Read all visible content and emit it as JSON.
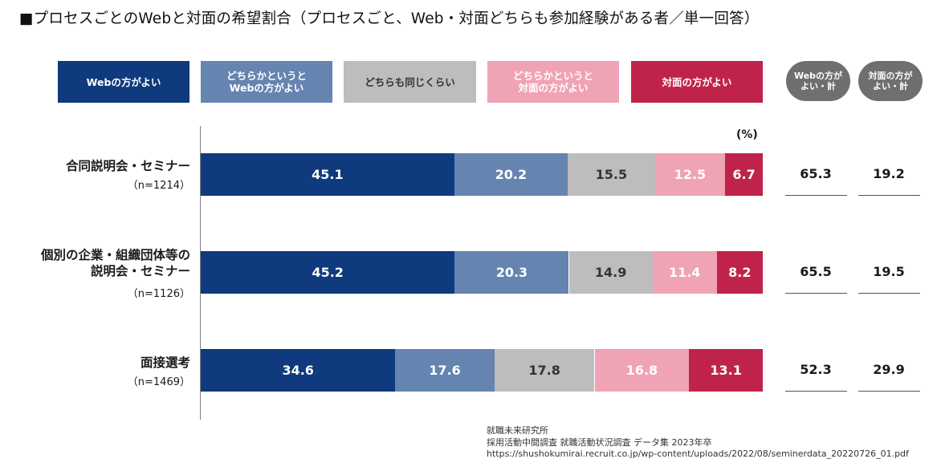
{
  "title": "■プロセスごとのWebと対面の希望割合（プロセスごと、Web・対面どちらも参加経験がある者／単一回答）",
  "chart_data": {
    "type": "bar",
    "orientation": "horizontal",
    "stacked": true,
    "unit": "(%)",
    "categories": [
      {
        "label": "合同説明会・セミナー",
        "n": "（n=1214）"
      },
      {
        "label": "個別の企業・組織団体等の\n説明会・セミナー",
        "n": "（n=1126）"
      },
      {
        "label": "面接選考",
        "n": "（n=1469）"
      }
    ],
    "series": [
      {
        "name": "Webの方がよい",
        "color": "#0f3a7d",
        "text_color": "#ffffff",
        "values": [
          45.1,
          45.2,
          34.6
        ]
      },
      {
        "name": "どちらかというと\nWebの方がよい",
        "color": "#6584b0",
        "text_color": "#ffffff",
        "values": [
          20.2,
          20.3,
          17.6
        ]
      },
      {
        "name": "どちらも同じくらい",
        "color": "#bdbdbd",
        "text_color": "#333333",
        "values": [
          15.5,
          14.9,
          17.8
        ]
      },
      {
        "name": "どちらかというと\n対面の方がよい",
        "color": "#f0a3b5",
        "text_color": "#ffffff",
        "values": [
          12.5,
          11.4,
          16.8
        ]
      },
      {
        "name": "対面の方がよい",
        "color": "#c0234a",
        "text_color": "#ffffff",
        "values": [
          6.7,
          8.2,
          13.1
        ]
      }
    ],
    "totals": {
      "headers": [
        "Webの方が\nよい・計",
        "対面の方が\nよい・計"
      ],
      "web": [
        65.3,
        65.5,
        52.3
      ],
      "face": [
        19.2,
        19.5,
        29.9
      ]
    }
  },
  "source": {
    "line1": "就職未来研究所",
    "line2": "採用活動中間調査 就職活動状況調査 データ集 2023年卒",
    "line3": "https://shushokumirai.recruit.co.jp/wp-content/uploads/2022/08/seminerdata_20220726_01.pdf"
  }
}
